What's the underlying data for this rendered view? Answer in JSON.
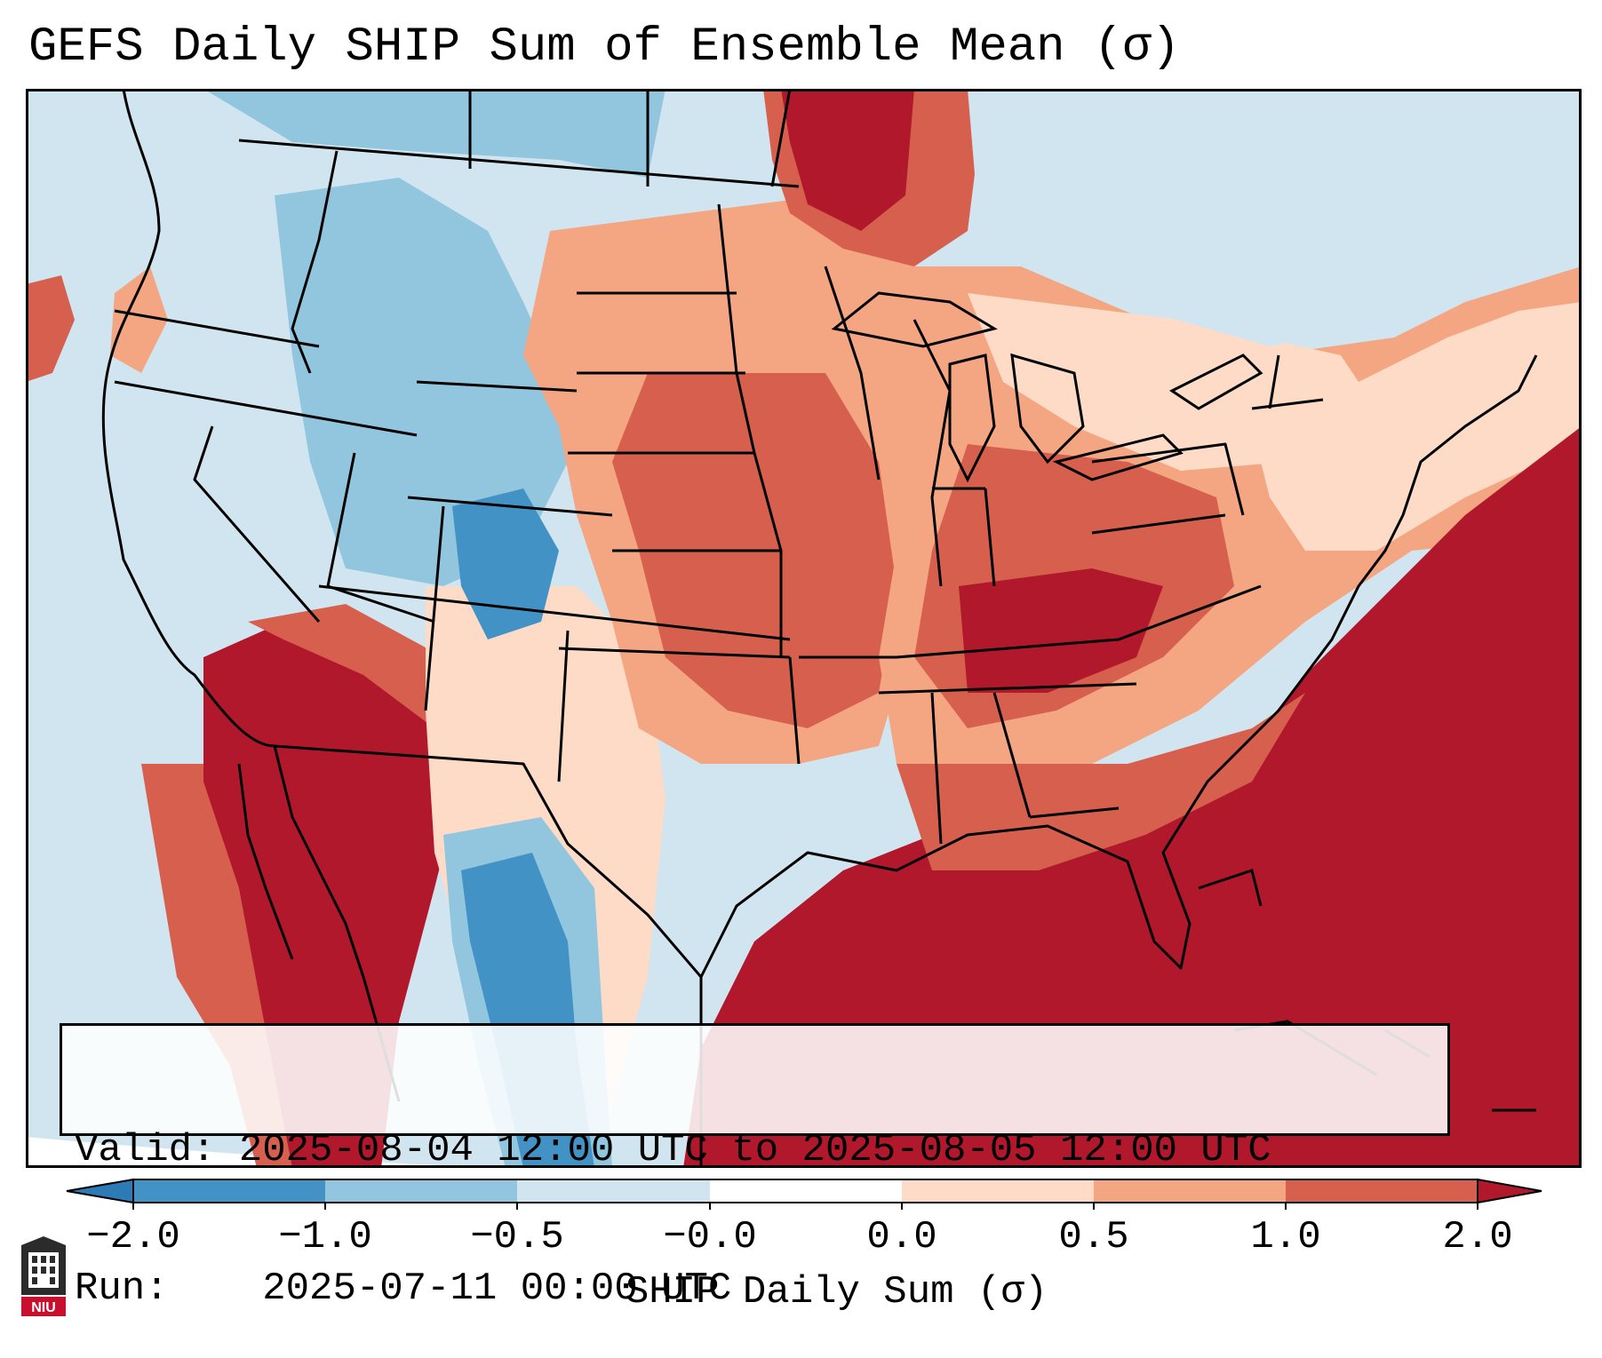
{
  "title": "GEFS Daily SHIP Sum of Ensemble Mean (σ)",
  "info": {
    "valid_label": "Valid:",
    "valid_value": "2025-08-04 12:00 UTC to 2025-08-05 12:00 UTC",
    "run_label": "Run:",
    "run_value": "2025-07-11 00:00 UTC"
  },
  "colorbar": {
    "label": "SHIP Daily Sum (σ)",
    "ticks": [
      "−2.0",
      "−1.0",
      "−0.5",
      "−0.0",
      "0.0",
      "0.5",
      "1.0",
      "2.0"
    ],
    "colors": {
      "under": "#2c7bb6",
      "b1": "#4292c6",
      "b2": "#92c5de",
      "b3": "#d1e5f0",
      "neutral": "#ffffff",
      "b4": "#fddbc7",
      "b5": "#f4a582",
      "b6": "#d6604d",
      "over": "#b2182b"
    }
  },
  "logo": {
    "text": "NIU",
    "color": "#c8102e"
  }
}
